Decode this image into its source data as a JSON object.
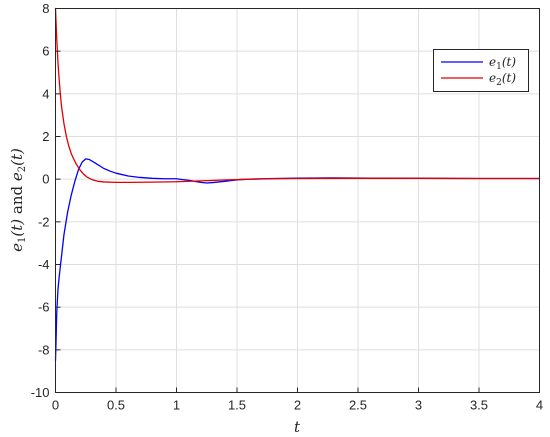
{
  "chart_data": {
    "type": "line",
    "xlabel": "t",
    "ylabel": "e1(t) and e2(t)",
    "xlim": [
      0,
      4
    ],
    "ylim": [
      -10,
      8
    ],
    "xticks": [
      "0",
      "0.5",
      "1",
      "1.5",
      "2",
      "2.5",
      "3",
      "3.5",
      "4"
    ],
    "yticks": [
      "-10",
      "-8",
      "-6",
      "-4",
      "-2",
      "0",
      "2",
      "4",
      "6",
      "8"
    ],
    "grid": true,
    "legend_position": "top-right",
    "series": [
      {
        "name": "e1(t)",
        "color": "#0000ff",
        "x": [
          0,
          0.005,
          0.01,
          0.02,
          0.03,
          0.05,
          0.07,
          0.1,
          0.13,
          0.16,
          0.19,
          0.22,
          0.25,
          0.28,
          0.31,
          0.35,
          0.4,
          0.45,
          0.5,
          0.6,
          0.7,
          0.8,
          0.9,
          1.0,
          1.05,
          1.1,
          1.15,
          1.2,
          1.25,
          1.3,
          1.4,
          1.5,
          1.6,
          1.8,
          2.0,
          2.3,
          2.6,
          3.0,
          3.5,
          4.0
        ],
        "y": [
          -8.5,
          -7.5,
          -6.3,
          -5.2,
          -4.6,
          -3.6,
          -2.6,
          -1.55,
          -0.75,
          -0.1,
          0.45,
          0.8,
          0.95,
          0.92,
          0.82,
          0.68,
          0.5,
          0.38,
          0.28,
          0.15,
          0.08,
          0.04,
          0.02,
          0.02,
          -0.02,
          -0.05,
          -0.1,
          -0.15,
          -0.18,
          -0.16,
          -0.1,
          -0.03,
          0.0,
          0.03,
          0.05,
          0.06,
          0.05,
          0.04,
          0.03,
          0.03
        ]
      },
      {
        "name": "e2(t)",
        "color": "#e00000",
        "x": [
          0,
          0.005,
          0.01,
          0.02,
          0.03,
          0.04,
          0.05,
          0.07,
          0.09,
          0.11,
          0.13,
          0.15,
          0.17,
          0.2,
          0.23,
          0.26,
          0.3,
          0.35,
          0.4,
          0.5,
          0.6,
          0.8,
          1.0,
          1.2,
          1.4,
          1.6,
          1.8,
          2.0,
          2.5,
          3.0,
          3.5,
          4.0
        ],
        "y": [
          8.0,
          7.3,
          6.6,
          5.5,
          4.7,
          4.0,
          3.4,
          2.6,
          2.0,
          1.55,
          1.2,
          0.95,
          0.72,
          0.45,
          0.25,
          0.1,
          -0.02,
          -0.1,
          -0.13,
          -0.15,
          -0.15,
          -0.14,
          -0.12,
          -0.08,
          -0.04,
          0.0,
          0.02,
          0.03,
          0.04,
          0.04,
          0.03,
          0.03
        ]
      }
    ]
  }
}
